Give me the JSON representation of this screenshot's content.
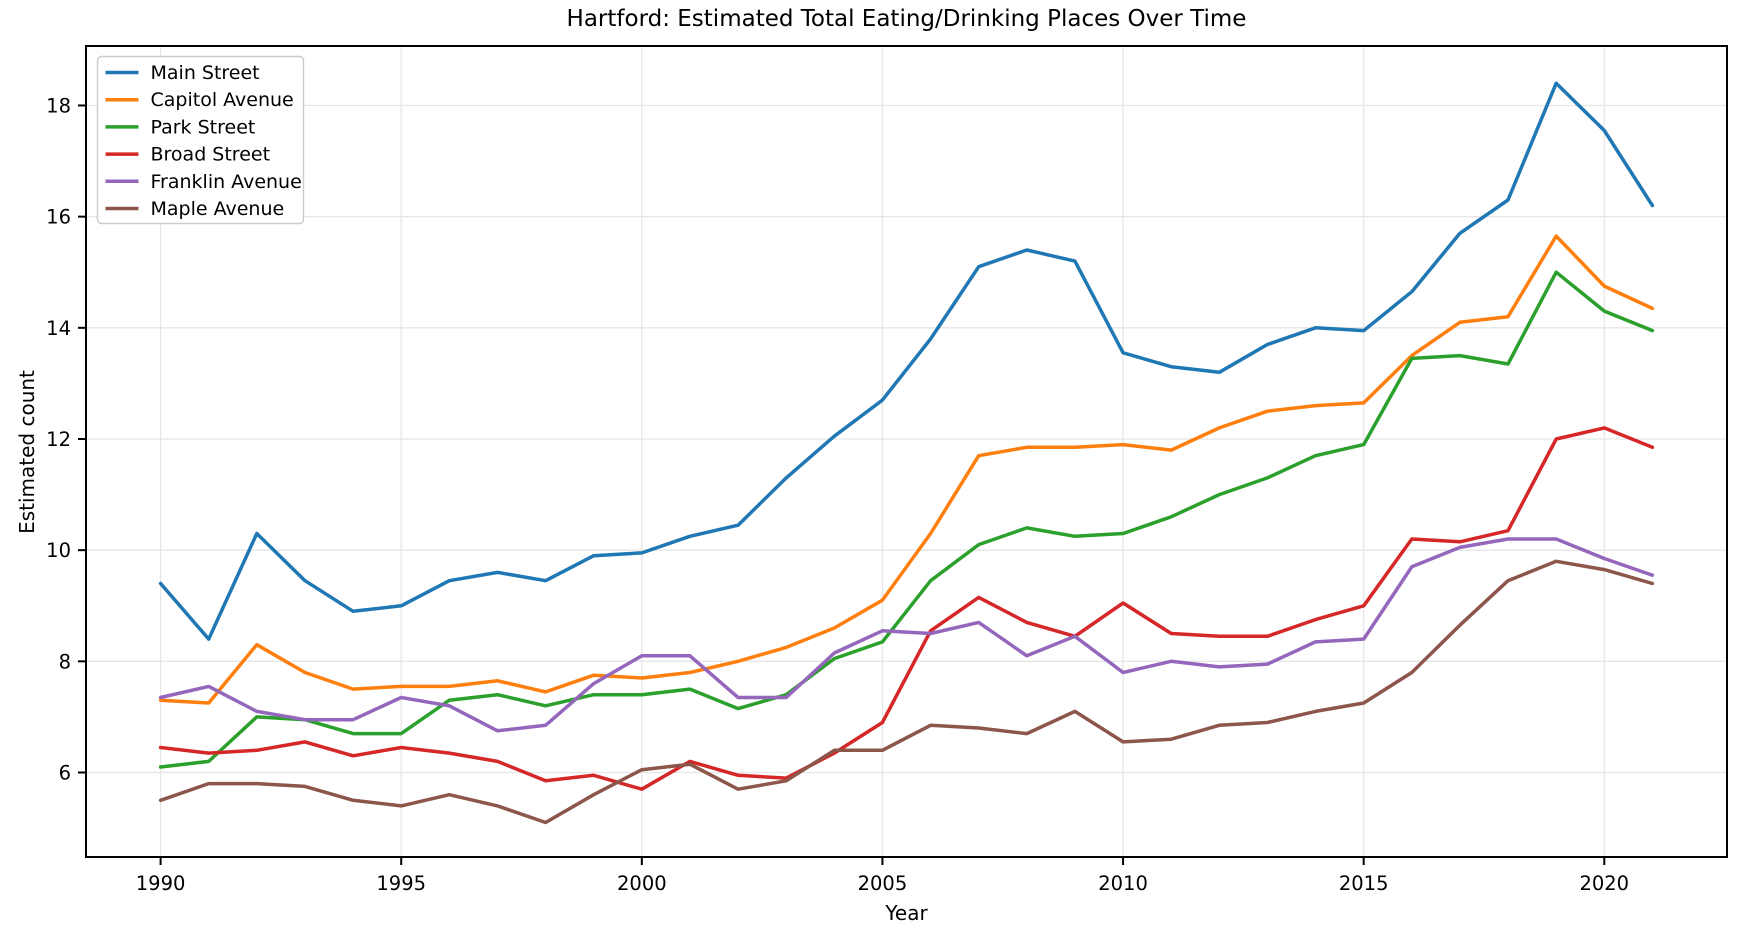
{
  "chart_data": {
    "type": "line",
    "title": "Hartford: Estimated Total Eating/Drinking Places Over Time",
    "xlabel": "Year",
    "ylabel": "Estimated count",
    "grid": true,
    "legend_position": "upper left",
    "xlim": [
      1988.45,
      2022.55
    ],
    "ylim": [
      4.48,
      19.07
    ],
    "xticks": [
      1990,
      1995,
      2000,
      2005,
      2010,
      2015,
      2020
    ],
    "yticks": [
      6,
      8,
      10,
      12,
      14,
      16,
      18
    ],
    "x": [
      1990,
      1991,
      1992,
      1993,
      1994,
      1995,
      1996,
      1997,
      1998,
      1999,
      2000,
      2001,
      2002,
      2003,
      2004,
      2005,
      2006,
      2007,
      2008,
      2009,
      2010,
      2011,
      2012,
      2013,
      2014,
      2015,
      2016,
      2017,
      2018,
      2019,
      2020,
      2021
    ],
    "series": [
      {
        "name": "Main Street",
        "color": "#1f77b4",
        "values": [
          9.4,
          8.4,
          10.3,
          9.45,
          8.9,
          9.0,
          9.45,
          9.6,
          9.45,
          9.9,
          9.95,
          10.25,
          10.45,
          11.3,
          12.05,
          12.7,
          13.8,
          15.1,
          15.4,
          15.2,
          13.55,
          13.3,
          13.2,
          13.7,
          14.0,
          13.95,
          14.65,
          15.7,
          16.3,
          18.4,
          17.55,
          16.2
        ]
      },
      {
        "name": "Capitol Avenue",
        "color": "#ff7f0e",
        "values": [
          7.3,
          7.25,
          8.3,
          7.8,
          7.5,
          7.55,
          7.55,
          7.65,
          7.45,
          7.75,
          7.7,
          7.8,
          8.0,
          8.25,
          8.6,
          9.1,
          10.3,
          11.7,
          11.85,
          11.85,
          11.9,
          11.8,
          12.2,
          12.5,
          12.6,
          12.65,
          13.5,
          14.1,
          14.2,
          15.65,
          14.75,
          14.35
        ]
      },
      {
        "name": "Park Street",
        "color": "#2ca02c",
        "values": [
          6.1,
          6.2,
          7.0,
          6.95,
          6.7,
          6.7,
          7.3,
          7.4,
          7.2,
          7.4,
          7.4,
          7.5,
          7.15,
          7.4,
          8.05,
          8.35,
          9.45,
          10.1,
          10.4,
          10.25,
          10.3,
          10.6,
          11.0,
          11.3,
          11.7,
          11.9,
          13.45,
          13.5,
          13.35,
          15.0,
          14.3,
          13.95
        ]
      },
      {
        "name": "Broad Street",
        "color": "#d62728",
        "values": [
          6.45,
          6.35,
          6.4,
          6.55,
          6.3,
          6.45,
          6.35,
          6.2,
          5.85,
          5.95,
          5.7,
          6.2,
          5.95,
          5.9,
          6.35,
          6.9,
          8.55,
          9.15,
          8.7,
          8.45,
          9.05,
          8.5,
          8.45,
          8.45,
          8.75,
          9.0,
          10.2,
          10.15,
          10.35,
          12.0,
          12.2,
          11.85
        ]
      },
      {
        "name": "Franklin Avenue",
        "color": "#9467bd",
        "values": [
          7.35,
          7.55,
          7.1,
          6.95,
          6.95,
          7.35,
          7.2,
          6.75,
          6.85,
          7.6,
          8.1,
          8.1,
          7.35,
          7.35,
          8.15,
          8.55,
          8.5,
          8.7,
          8.1,
          8.45,
          7.8,
          8.0,
          7.9,
          7.95,
          8.35,
          8.4,
          9.7,
          10.05,
          10.2,
          10.2,
          9.85,
          9.55
        ]
      },
      {
        "name": "Maple Avenue",
        "color": "#8c564b",
        "values": [
          5.5,
          5.8,
          5.8,
          5.75,
          5.5,
          5.4,
          5.6,
          5.4,
          5.1,
          5.6,
          6.05,
          6.15,
          5.7,
          5.85,
          6.4,
          6.4,
          6.85,
          6.8,
          6.7,
          7.1,
          6.55,
          6.6,
          6.85,
          6.9,
          7.1,
          7.25,
          7.8,
          8.65,
          9.45,
          9.8,
          9.65,
          9.4
        ]
      }
    ],
    "style": {
      "grid_color": "#e6e6e6",
      "spine_color": "#000000",
      "legend_border_color": "#cccccc"
    }
  }
}
